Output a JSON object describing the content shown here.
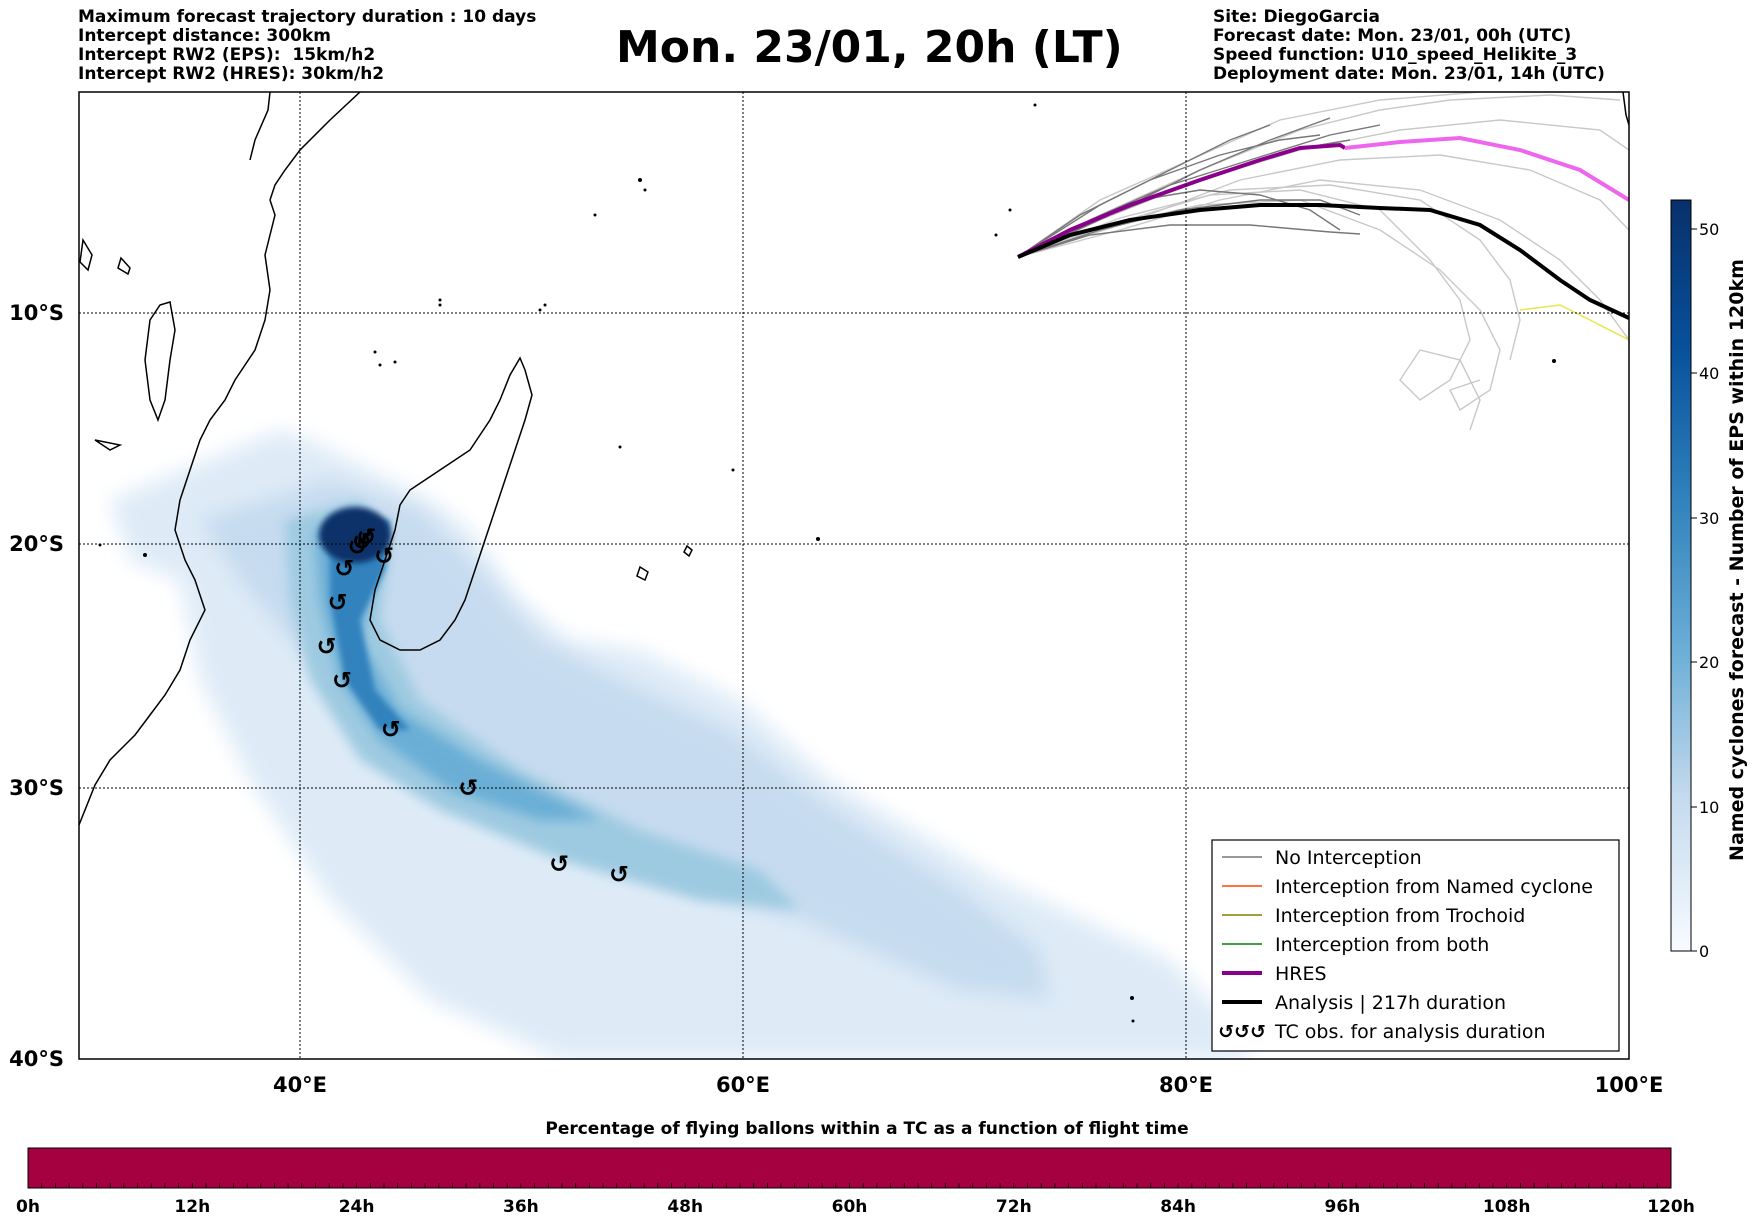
{
  "header": {
    "left_lines": [
      "Maximum forecast trajectory duration : 10 days",
      "Intercept distance: 300km",
      "Intercept RW2 (EPS):  15km/h2",
      "Intercept RW2 (HRES): 30km/h2"
    ],
    "right_lines": [
      "Site: DiegoGarcia",
      "Forecast date: Mon. 23/01, 00h (UTC)",
      "Speed function: U10_speed_Helikite_3",
      "Deployment date: Mon. 23/01, 14h (UTC)"
    ],
    "title": "Mon. 23/01, 20h (LT)"
  },
  "map": {
    "lon_labels": [
      "40°E",
      "60°E",
      "80°E",
      "100°E"
    ],
    "lat_labels": [
      "10°S",
      "20°S",
      "30°S",
      "40°S"
    ],
    "lon_range": [
      30,
      100
    ],
    "lat_range": [
      -40,
      2
    ],
    "grid": true,
    "colors": {
      "density_max": "#08306b",
      "density_min": "#deebf7",
      "hres": "#8b008b",
      "hres_ext": "#ee66ee",
      "analysis": "#000000",
      "eps": "#666666",
      "eps_light": "#c8c8c8",
      "named_cyclone": "#ff4500",
      "trochoid": "#808000",
      "both": "#008000"
    }
  },
  "colorbar": {
    "label": "Named cyclones forecast - Number of EPS within 120km",
    "ticks": [
      "0",
      "10",
      "20",
      "30",
      "40",
      "50"
    ],
    "range": [
      0,
      52
    ],
    "colormap": "Blues"
  },
  "legend": {
    "items": [
      {
        "label": "No Interception",
        "color": "#777777",
        "style": "thin"
      },
      {
        "label": "Interception from Named cyclone",
        "color": "#ff4500",
        "style": "thin"
      },
      {
        "label": "Interception from Trochoid",
        "color": "#808000",
        "style": "thin"
      },
      {
        "label": "Interception from both",
        "color": "#008000",
        "style": "thin"
      },
      {
        "label": "HRES",
        "color": "#8b008b",
        "style": "thick"
      },
      {
        "label": "Analysis | 217h duration",
        "color": "#000000",
        "style": "thick"
      },
      {
        "label": "TC obs. for analysis duration",
        "color": "#000000",
        "style": "tc-symbol"
      }
    ]
  },
  "tc_observations": [
    {
      "lon": 42.8,
      "lat": -19.9
    },
    {
      "lon": 42.6,
      "lat": -20.1
    },
    {
      "lon": 43.0,
      "lat": -19.7
    },
    {
      "lon": 43.8,
      "lat": -20.5
    },
    {
      "lon": 42.0,
      "lat": -21.0
    },
    {
      "lon": 41.7,
      "lat": -22.4
    },
    {
      "lon": 41.2,
      "lat": -24.2
    },
    {
      "lon": 41.9,
      "lat": -25.6
    },
    {
      "lon": 44.1,
      "lat": -27.6
    },
    {
      "lon": 47.6,
      "lat": -30.0
    },
    {
      "lon": 51.7,
      "lat": -32.8
    },
    {
      "lon": 54.4,
      "lat": -33.2
    }
  ],
  "bottom_bar": {
    "title": "Percentage of flying ballons within a TC as a function of flight time",
    "ticks": [
      "0h",
      "12h",
      "24h",
      "36h",
      "48h",
      "60h",
      "72h",
      "84h",
      "96h",
      "108h",
      "120h"
    ],
    "fill_color": "#a50040"
  }
}
